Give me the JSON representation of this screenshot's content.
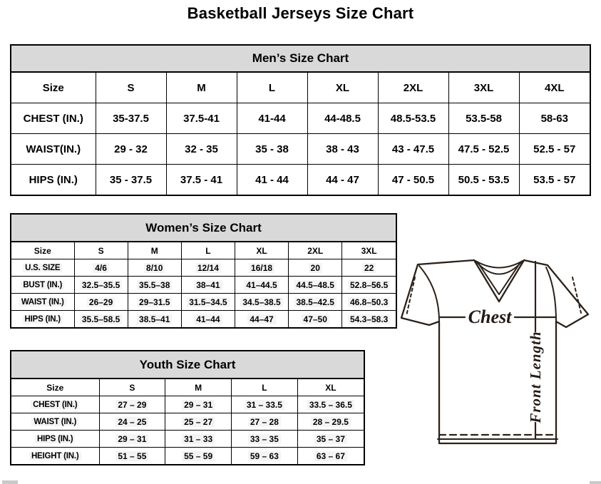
{
  "title": "Basketball Jerseys Size Chart",
  "colors": {
    "table_header_bg": "#d9d9d9",
    "table_border": "#000000",
    "diagram_stroke": "#2a211a"
  },
  "mens": {
    "title": "Men’s Size Chart",
    "columns": [
      "Size",
      "S",
      "M",
      "L",
      "XL",
      "2XL",
      "3XL",
      "4XL"
    ],
    "rows": [
      {
        "label": "CHEST (IN.)",
        "values": [
          "35-37.5",
          "37.5-41",
          "41-44",
          "44-48.5",
          "48.5-53.5",
          "53.5-58",
          "58-63"
        ]
      },
      {
        "label": "WAIST(IN.)",
        "values": [
          "29 - 32",
          "32 - 35",
          "35 - 38",
          "38 - 43",
          "43 - 47.5",
          "47.5 - 52.5",
          "52.5 - 57"
        ]
      },
      {
        "label": "HIPS (IN.)",
        "values": [
          "35 - 37.5",
          "37.5 - 41",
          "41 - 44",
          "44 - 47",
          "47 - 50.5",
          "50.5 - 53.5",
          "53.5 - 57"
        ]
      }
    ]
  },
  "womens": {
    "title": "Women’s Size Chart",
    "columns": [
      "Size",
      "S",
      "M",
      "L",
      "XL",
      "2XL",
      "3XL"
    ],
    "rows": [
      {
        "label": "U.S. SIZE",
        "values": [
          "4/6",
          "8/10",
          "12/14",
          "16/18",
          "20",
          "22"
        ]
      },
      {
        "label": "BUST (IN.)",
        "values": [
          "32.5–35.5",
          "35.5–38",
          "38–41",
          "41–44.5",
          "44.5–48.5",
          "52.8–56.5"
        ]
      },
      {
        "label": "WAIST (IN.)",
        "values": [
          "26–29",
          "29–31.5",
          "31.5–34.5",
          "34.5–38.5",
          "38.5–42.5",
          "46.8–50.3"
        ]
      },
      {
        "label": "HIPS (IN.)",
        "values": [
          "35.5–58.5",
          "38.5–41",
          "41–44",
          "44–47",
          "47–50",
          "54.3–58.3"
        ]
      }
    ]
  },
  "youth": {
    "title": "Youth Size Chart",
    "columns": [
      "Size",
      "S",
      "M",
      "L",
      "XL"
    ],
    "rows": [
      {
        "label": "CHEST (IN.)",
        "values": [
          "27 – 29",
          "29 – 31",
          "31 – 33.5",
          "33.5 – 36.5"
        ]
      },
      {
        "label": "WAIST (IN.)",
        "values": [
          "24 – 25",
          "25 – 27",
          "27 – 28",
          "28 – 29.5"
        ]
      },
      {
        "label": "HIPS (IN.)",
        "values": [
          "29 – 31",
          "31 – 33",
          "33 – 35",
          "35 – 37"
        ]
      },
      {
        "label": "HEIGHT (IN.)",
        "values": [
          "51 – 55",
          "55 – 59",
          "59 – 63",
          "63 – 67"
        ]
      }
    ]
  },
  "diagram": {
    "chest_label": "Chest",
    "front_length_label": "Front Length"
  }
}
